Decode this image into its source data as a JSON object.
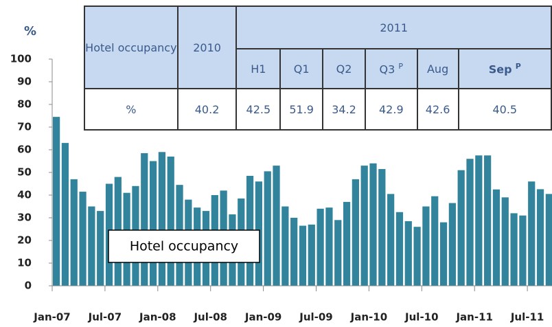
{
  "chart_data": {
    "type": "bar",
    "y_label": "%",
    "legend": "Hotel occupancy",
    "color": "#31849b",
    "categories": [
      "Jan-07",
      null,
      null,
      null,
      null,
      null,
      "Jul-07",
      null,
      null,
      null,
      null,
      null,
      "Jan-08",
      null,
      null,
      null,
      null,
      null,
      "Jul-08",
      null,
      null,
      null,
      null,
      null,
      "Jan-09",
      null,
      null,
      null,
      null,
      null,
      "Jul-09",
      null,
      null,
      null,
      null,
      null,
      "Jan-10",
      null,
      null,
      null,
      null,
      null,
      "Jul-10",
      null,
      null,
      null,
      null,
      null,
      "Jan-11",
      null,
      null,
      null,
      null,
      null,
      "Jul-11",
      null,
      null
    ],
    "values": [
      74.5,
      63,
      47,
      41.5,
      35,
      33,
      45,
      48,
      41,
      44,
      58.5,
      55,
      59,
      57,
      44.5,
      38,
      34.5,
      33,
      40,
      42,
      31.5,
      38.5,
      48.5,
      46,
      50.5,
      53,
      35,
      30,
      26.5,
      27,
      34,
      34.5,
      29,
      37,
      47,
      53,
      54,
      51.5,
      40.5,
      32.5,
      28.5,
      26,
      35,
      39.5,
      28,
      36.5,
      51,
      56,
      57.5,
      57.5,
      42.5,
      39,
      32,
      31,
      46,
      42.6,
      40.5
    ],
    "ylim": [
      0,
      100
    ],
    "yticks": [
      0,
      10,
      20,
      30,
      40,
      50,
      60,
      70,
      80,
      90,
      100
    ]
  },
  "table": {
    "row_header": "Hotel occupancy",
    "year_a": "2010",
    "year_b": "2011",
    "columns": [
      {
        "label": "H1"
      },
      {
        "label": "Q1"
      },
      {
        "label": "Q2"
      },
      {
        "label": "Q3",
        "sup": "P"
      },
      {
        "label": "Aug"
      },
      {
        "label": "Sep",
        "sup": "P",
        "bold": true
      }
    ],
    "unit": "%",
    "values": [
      "40.2",
      "42.5",
      "51.9",
      "34.2",
      "42.9",
      "42.6",
      "40.5"
    ]
  }
}
